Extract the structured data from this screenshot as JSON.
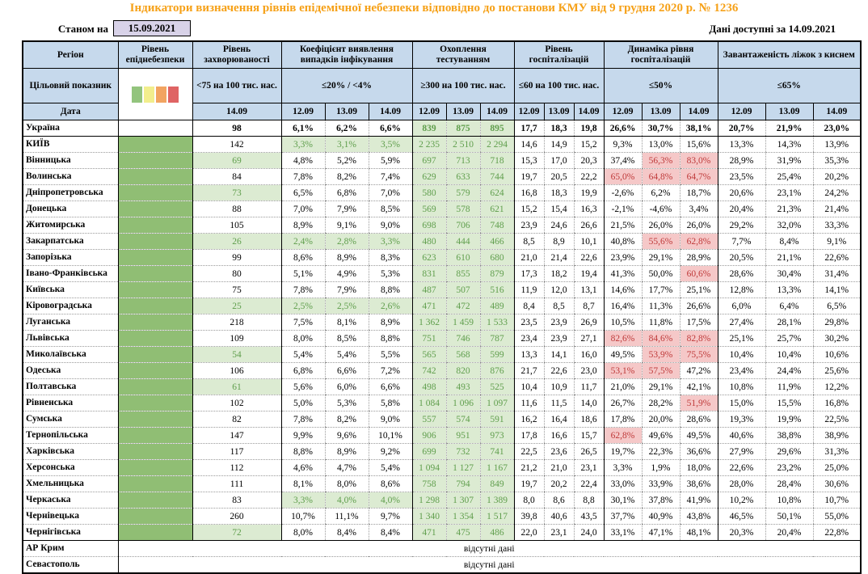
{
  "header": {
    "title": "Індикатори визначення рівнів епідемічної небезпеки відповідно до постанови КМУ від 9 грудня 2020 р. № 1236",
    "as_of_label": "Станом на",
    "as_of_date": "15.09.2021",
    "data_available": "Дані доступні за  14.09.2021"
  },
  "colors": {
    "title": "#F6A118",
    "header-bg": "#C6D9EC",
    "date-box-bg": "#D8D2E8",
    "epi-green": "#90BE74",
    "cell-green-bg": "#DCEBD2",
    "green-text": "#5F9E4C",
    "alert-bg": "#F5C8C8",
    "alert-text": "#BF3A3A"
  },
  "legend_colors": [
    "#93C47D",
    "#F2EE8D",
    "#F2A461",
    "#DF6464"
  ],
  "columns": {
    "region_label": "Регіон",
    "target_label": "Цільовий показник",
    "date_label": "Дата",
    "groups": [
      {
        "id": "epidemic",
        "label": "Рівень епіднебезпеки",
        "target": "",
        "dates": []
      },
      {
        "id": "incidence",
        "label": "Рівень захворюваності",
        "target": "<75 на 100 тис. нас.",
        "dates": [
          "14.09"
        ]
      },
      {
        "id": "coef",
        "label": "Коефіцієнт виявлення випадків інфікування",
        "target": "≤20% / <4%",
        "dates": [
          "12.09",
          "13.09",
          "14.09"
        ]
      },
      {
        "id": "testing",
        "label": "Охоплення тестуванням",
        "target": "≥300 на 100 тис. нас.",
        "dates": [
          "12.09",
          "13.09",
          "14.09"
        ]
      },
      {
        "id": "hosp",
        "label": "Рівень госпіталізацій",
        "target": "≤60 на 100 тис. нас.",
        "dates": [
          "12.09",
          "13.09",
          "14.09"
        ]
      },
      {
        "id": "dynamics",
        "label": "Динаміка рівня госпіталізацій",
        "target": "≤50%",
        "dates": [
          "12.09",
          "13.09",
          "14.09"
        ]
      },
      {
        "id": "oxygen",
        "label": "Завантаженість ліжок з киснем",
        "target": "≤65%",
        "dates": [
          "12.09",
          "13.09",
          "14.09"
        ]
      }
    ]
  },
  "no_data_text": "відсутні дані",
  "rows": [
    {
      "name": "Україна",
      "b": 1,
      "sb": 1,
      "epi": "white",
      "inc": "98",
      "ig": 0,
      "coef": [
        "6,1%",
        "6,2%",
        "6,6%"
      ],
      "cg": 0,
      "test": [
        "839",
        "875",
        "895"
      ],
      "hosp": [
        "17,7",
        "18,3",
        "19,8"
      ],
      "dyn": [
        "26,6%",
        "30,7%",
        "38,1%"
      ],
      "dr": [
        0,
        0,
        0
      ],
      "oxy": [
        "20,7%",
        "21,9%",
        "23,0%"
      ]
    },
    {
      "name": "КИЇВ",
      "epi": "green",
      "inc": "142",
      "ig": 0,
      "coef": [
        "3,3%",
        "3,1%",
        "3,5%"
      ],
      "cg": 1,
      "test": [
        "2 235",
        "2 510",
        "2 294"
      ],
      "hosp": [
        "14,6",
        "14,9",
        "15,2"
      ],
      "dyn": [
        "9,3%",
        "13,0%",
        "15,6%"
      ],
      "dr": [
        0,
        0,
        0
      ],
      "oxy": [
        "13,3%",
        "14,3%",
        "13,9%"
      ]
    },
    {
      "name": "Вінницька",
      "epi": "green",
      "inc": "69",
      "ig": 1,
      "coef": [
        "4,8%",
        "5,2%",
        "5,9%"
      ],
      "cg": 0,
      "test": [
        "697",
        "713",
        "718"
      ],
      "hosp": [
        "15,3",
        "17,0",
        "20,3"
      ],
      "dyn": [
        "37,4%",
        "56,3%",
        "83,0%"
      ],
      "dr": [
        0,
        1,
        1
      ],
      "oxy": [
        "28,9%",
        "31,9%",
        "35,3%"
      ]
    },
    {
      "name": "Волинська",
      "epi": "green",
      "inc": "84",
      "ig": 0,
      "coef": [
        "7,8%",
        "8,2%",
        "7,4%"
      ],
      "cg": 0,
      "test": [
        "629",
        "633",
        "744"
      ],
      "hosp": [
        "19,7",
        "20,5",
        "22,2"
      ],
      "dyn": [
        "65,0%",
        "64,8%",
        "64,7%"
      ],
      "dr": [
        1,
        1,
        1
      ],
      "oxy": [
        "23,5%",
        "25,4%",
        "20,2%"
      ]
    },
    {
      "name": "Дніпропетровська",
      "epi": "green",
      "inc": "73",
      "ig": 1,
      "coef": [
        "6,5%",
        "6,8%",
        "7,0%"
      ],
      "cg": 0,
      "test": [
        "580",
        "579",
        "624"
      ],
      "hosp": [
        "16,8",
        "18,3",
        "19,9"
      ],
      "dyn": [
        "-2,6%",
        "6,2%",
        "18,7%"
      ],
      "dr": [
        0,
        0,
        0
      ],
      "oxy": [
        "20,6%",
        "23,1%",
        "24,2%"
      ]
    },
    {
      "name": "Донецька",
      "epi": "green",
      "inc": "88",
      "ig": 0,
      "coef": [
        "7,0%",
        "7,9%",
        "8,5%"
      ],
      "cg": 0,
      "test": [
        "569",
        "578",
        "621"
      ],
      "hosp": [
        "15,2",
        "15,4",
        "16,3"
      ],
      "dyn": [
        "-2,1%",
        "-4,6%",
        "3,4%"
      ],
      "dr": [
        0,
        0,
        0
      ],
      "oxy": [
        "20,4%",
        "21,3%",
        "21,4%"
      ]
    },
    {
      "name": "Житомирська",
      "epi": "green",
      "inc": "105",
      "ig": 0,
      "coef": [
        "8,9%",
        "9,1%",
        "9,0%"
      ],
      "cg": 0,
      "test": [
        "698",
        "706",
        "748"
      ],
      "hosp": [
        "23,9",
        "24,6",
        "26,6"
      ],
      "dyn": [
        "21,5%",
        "26,0%",
        "26,0%"
      ],
      "dr": [
        0,
        0,
        0
      ],
      "oxy": [
        "29,2%",
        "32,0%",
        "33,3%"
      ]
    },
    {
      "name": "Закарпатська",
      "epi": "green",
      "inc": "26",
      "ig": 1,
      "coef": [
        "2,4%",
        "2,8%",
        "3,3%"
      ],
      "cg": 1,
      "test": [
        "480",
        "444",
        "466"
      ],
      "hosp": [
        "8,5",
        "8,9",
        "10,1"
      ],
      "dyn": [
        "40,8%",
        "55,6%",
        "62,8%"
      ],
      "dr": [
        0,
        1,
        1
      ],
      "oxy": [
        "7,7%",
        "8,4%",
        "9,1%"
      ]
    },
    {
      "name": "Запорізька",
      "epi": "green",
      "inc": "99",
      "ig": 0,
      "coef": [
        "8,6%",
        "8,9%",
        "8,3%"
      ],
      "cg": 0,
      "test": [
        "623",
        "610",
        "680"
      ],
      "hosp": [
        "21,0",
        "21,4",
        "22,6"
      ],
      "dyn": [
        "23,9%",
        "29,1%",
        "28,9%"
      ],
      "dr": [
        0,
        0,
        0
      ],
      "oxy": [
        "20,5%",
        "21,1%",
        "22,6%"
      ]
    },
    {
      "name": "Івано-Франківська",
      "epi": "green",
      "inc": "80",
      "ig": 0,
      "coef": [
        "5,1%",
        "4,9%",
        "5,3%"
      ],
      "cg": 0,
      "test": [
        "831",
        "855",
        "879"
      ],
      "hosp": [
        "17,3",
        "18,2",
        "19,4"
      ],
      "dyn": [
        "41,3%",
        "50,0%",
        "60,6%"
      ],
      "dr": [
        0,
        0,
        1
      ],
      "oxy": [
        "28,6%",
        "30,4%",
        "31,4%"
      ]
    },
    {
      "name": "Київська",
      "epi": "green",
      "inc": "75",
      "ig": 0,
      "coef": [
        "7,8%",
        "7,9%",
        "8,8%"
      ],
      "cg": 0,
      "test": [
        "487",
        "507",
        "516"
      ],
      "hosp": [
        "11,9",
        "12,0",
        "13,1"
      ],
      "dyn": [
        "14,6%",
        "17,7%",
        "25,1%"
      ],
      "dr": [
        0,
        0,
        0
      ],
      "oxy": [
        "12,8%",
        "13,3%",
        "14,1%"
      ]
    },
    {
      "name": "Кіровоградська",
      "epi": "green",
      "inc": "25",
      "ig": 1,
      "coef": [
        "2,5%",
        "2,5%",
        "2,6%"
      ],
      "cg": 1,
      "test": [
        "471",
        "472",
        "489"
      ],
      "hosp": [
        "8,4",
        "8,5",
        "8,7"
      ],
      "dyn": [
        "16,4%",
        "11,3%",
        "26,6%"
      ],
      "dr": [
        0,
        0,
        0
      ],
      "oxy": [
        "6,0%",
        "6,4%",
        "6,5%"
      ]
    },
    {
      "name": "Луганська",
      "epi": "green",
      "inc": "218",
      "ig": 0,
      "coef": [
        "7,5%",
        "8,1%",
        "8,9%"
      ],
      "cg": 0,
      "test": [
        "1 362",
        "1 459",
        "1 533"
      ],
      "hosp": [
        "23,5",
        "23,9",
        "26,9"
      ],
      "dyn": [
        "10,5%",
        "11,8%",
        "17,5%"
      ],
      "dr": [
        0,
        0,
        0
      ],
      "oxy": [
        "27,4%",
        "28,1%",
        "29,8%"
      ]
    },
    {
      "name": "Львівська",
      "epi": "green",
      "inc": "109",
      "ig": 0,
      "coef": [
        "8,0%",
        "8,5%",
        "8,8%"
      ],
      "cg": 0,
      "test": [
        "751",
        "746",
        "787"
      ],
      "hosp": [
        "23,4",
        "23,9",
        "27,1"
      ],
      "dyn": [
        "82,6%",
        "84,6%",
        "82,8%"
      ],
      "dr": [
        1,
        1,
        1
      ],
      "oxy": [
        "25,1%",
        "25,7%",
        "30,2%"
      ]
    },
    {
      "name": "Миколаївська",
      "epi": "green",
      "inc": "54",
      "ig": 1,
      "coef": [
        "5,4%",
        "5,4%",
        "5,5%"
      ],
      "cg": 0,
      "test": [
        "565",
        "568",
        "599"
      ],
      "hosp": [
        "13,3",
        "14,1",
        "16,0"
      ],
      "dyn": [
        "49,5%",
        "53,9%",
        "75,5%"
      ],
      "dr": [
        0,
        1,
        1
      ],
      "oxy": [
        "10,4%",
        "10,4%",
        "10,6%"
      ]
    },
    {
      "name": "Одеська",
      "epi": "green",
      "inc": "106",
      "ig": 0,
      "coef": [
        "6,8%",
        "6,6%",
        "7,2%"
      ],
      "cg": 0,
      "test": [
        "742",
        "820",
        "876"
      ],
      "hosp": [
        "21,7",
        "22,6",
        "23,0"
      ],
      "dyn": [
        "53,1%",
        "57,5%",
        "47,2%"
      ],
      "dr": [
        1,
        1,
        0
      ],
      "oxy": [
        "23,4%",
        "24,4%",
        "25,6%"
      ]
    },
    {
      "name": "Полтавська",
      "epi": "green",
      "inc": "61",
      "ig": 1,
      "coef": [
        "5,6%",
        "6,0%",
        "6,6%"
      ],
      "cg": 0,
      "test": [
        "498",
        "493",
        "525"
      ],
      "hosp": [
        "10,4",
        "10,9",
        "11,7"
      ],
      "dyn": [
        "21,0%",
        "29,1%",
        "42,1%"
      ],
      "dr": [
        0,
        0,
        0
      ],
      "oxy": [
        "10,8%",
        "11,9%",
        "12,2%"
      ]
    },
    {
      "name": "Рівненська",
      "epi": "green",
      "inc": "102",
      "ig": 0,
      "coef": [
        "5,0%",
        "5,3%",
        "5,8%"
      ],
      "cg": 0,
      "test": [
        "1 084",
        "1 096",
        "1 097"
      ],
      "hosp": [
        "11,6",
        "11,5",
        "14,0"
      ],
      "dyn": [
        "26,7%",
        "28,2%",
        "51,9%"
      ],
      "dr": [
        0,
        0,
        1
      ],
      "oxy": [
        "15,0%",
        "15,5%",
        "16,8%"
      ]
    },
    {
      "name": "Сумська",
      "epi": "green",
      "inc": "82",
      "ig": 0,
      "coef": [
        "7,8%",
        "8,2%",
        "9,0%"
      ],
      "cg": 0,
      "test": [
        "557",
        "574",
        "591"
      ],
      "hosp": [
        "16,2",
        "16,4",
        "18,6"
      ],
      "dyn": [
        "17,8%",
        "20,0%",
        "28,6%"
      ],
      "dr": [
        0,
        0,
        0
      ],
      "oxy": [
        "19,3%",
        "19,9%",
        "22,5%"
      ]
    },
    {
      "name": "Тернопільська",
      "epi": "green",
      "inc": "147",
      "ig": 0,
      "coef": [
        "9,9%",
        "9,6%",
        "10,1%"
      ],
      "cg": 0,
      "test": [
        "906",
        "951",
        "973"
      ],
      "hosp": [
        "17,8",
        "16,6",
        "15,7"
      ],
      "dyn": [
        "62,8%",
        "49,6%",
        "49,5%"
      ],
      "dr": [
        1,
        0,
        0
      ],
      "oxy": [
        "40,6%",
        "38,8%",
        "38,9%"
      ]
    },
    {
      "name": "Харківська",
      "epi": "green",
      "inc": "117",
      "ig": 0,
      "coef": [
        "8,8%",
        "8,9%",
        "9,2%"
      ],
      "cg": 0,
      "test": [
        "699",
        "732",
        "741"
      ],
      "hosp": [
        "22,5",
        "23,6",
        "26,5"
      ],
      "dyn": [
        "19,7%",
        "22,3%",
        "36,6%"
      ],
      "dr": [
        0,
        0,
        0
      ],
      "oxy": [
        "27,9%",
        "29,6%",
        "31,3%"
      ]
    },
    {
      "name": "Херсонська",
      "epi": "green",
      "inc": "112",
      "ig": 0,
      "coef": [
        "4,6%",
        "4,7%",
        "5,4%"
      ],
      "cg": 0,
      "test": [
        "1 094",
        "1 127",
        "1 167"
      ],
      "hosp": [
        "21,2",
        "21,0",
        "23,1"
      ],
      "dyn": [
        "3,3%",
        "1,9%",
        "18,0%"
      ],
      "dr": [
        0,
        0,
        0
      ],
      "oxy": [
        "22,6%",
        "23,2%",
        "25,0%"
      ]
    },
    {
      "name": "Хмельницька",
      "epi": "green",
      "inc": "111",
      "ig": 0,
      "coef": [
        "8,1%",
        "8,0%",
        "8,6%"
      ],
      "cg": 0,
      "test": [
        "758",
        "794",
        "849"
      ],
      "hosp": [
        "19,7",
        "20,2",
        "22,4"
      ],
      "dyn": [
        "33,0%",
        "33,9%",
        "38,6%"
      ],
      "dr": [
        0,
        0,
        0
      ],
      "oxy": [
        "28,0%",
        "28,4%",
        "30,6%"
      ]
    },
    {
      "name": "Черкаська",
      "epi": "green",
      "inc": "83",
      "ig": 0,
      "coef": [
        "3,3%",
        "4,0%",
        "4,0%"
      ],
      "cg": 1,
      "test": [
        "1 298",
        "1 307",
        "1 389"
      ],
      "hosp": [
        "8,0",
        "8,6",
        "8,8"
      ],
      "dyn": [
        "30,1%",
        "37,8%",
        "41,9%"
      ],
      "dr": [
        0,
        0,
        0
      ],
      "oxy": [
        "10,2%",
        "10,8%",
        "10,7%"
      ]
    },
    {
      "name": "Чернівецька",
      "epi": "green",
      "inc": "260",
      "ig": 0,
      "coef": [
        "10,7%",
        "11,1%",
        "9,7%"
      ],
      "cg": 0,
      "test": [
        "1 340",
        "1 354",
        "1 517"
      ],
      "hosp": [
        "39,8",
        "40,6",
        "43,5"
      ],
      "dyn": [
        "37,7%",
        "40,9%",
        "43,8%"
      ],
      "dr": [
        0,
        0,
        0
      ],
      "oxy": [
        "46,5%",
        "50,1%",
        "55,0%"
      ]
    },
    {
      "name": "Чернігівська",
      "sb": 1,
      "epi": "green",
      "inc": "72",
      "ig": 1,
      "coef": [
        "8,0%",
        "8,4%",
        "8,4%"
      ],
      "cg": 0,
      "test": [
        "471",
        "475",
        "486"
      ],
      "hosp": [
        "22,0",
        "23,1",
        "24,0"
      ],
      "dyn": [
        "33,1%",
        "47,1%",
        "48,1%"
      ],
      "dr": [
        0,
        0,
        0
      ],
      "oxy": [
        "20,3%",
        "20,4%",
        "22,8%"
      ]
    },
    {
      "name": "АР Крим",
      "nd": 1
    },
    {
      "name": "Севастополь",
      "nd": 1
    }
  ]
}
